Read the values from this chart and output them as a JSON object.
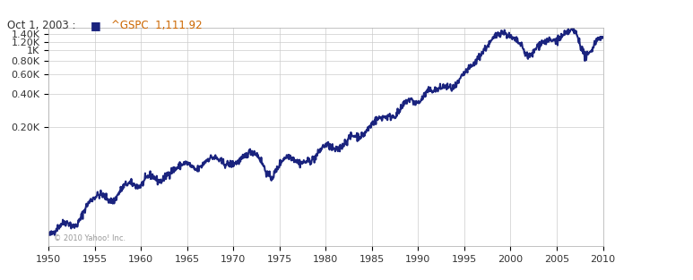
{
  "title_text": "Oct 1, 2003 :   ■^GSPC  1,111.92",
  "title_color": "#333333",
  "legend_marker_color": "#1a237e",
  "legend_text_color": "#cc6600",
  "copyright_text": "© 2010 Yahoo! Inc.",
  "line_color": "#1a237e",
  "line_width": 1.5,
  "background_color": "#ffffff",
  "grid_color": "#cccccc",
  "x_start": 1950,
  "x_end": 2010,
  "xticks": [
    1950,
    1955,
    1960,
    1965,
    1970,
    1975,
    1980,
    1985,
    1990,
    1995,
    2000,
    2005,
    2010
  ],
  "yticks": [
    200,
    400,
    600,
    800,
    1000,
    1200,
    1400
  ],
  "ytick_labels": [
    "0.20K",
    "0.40K",
    "0.60K",
    "0.80K",
    "1K",
    "1.20K",
    "1.40K"
  ],
  "ylim_log": [
    16,
    1600
  ],
  "sp500_data": {
    "years": [
      1950,
      1951,
      1952,
      1953,
      1954,
      1955,
      1956,
      1957,
      1958,
      1959,
      1960,
      1961,
      1962,
      1963,
      1964,
      1965,
      1966,
      1967,
      1968,
      1969,
      1970,
      1971,
      1972,
      1973,
      1974,
      1975,
      1976,
      1977,
      1978,
      1979,
      1980,
      1981,
      1982,
      1983,
      1984,
      1985,
      1986,
      1987,
      1988,
      1989,
      1990,
      1991,
      1992,
      1993,
      1994,
      1995,
      1996,
      1997,
      1998,
      1999,
      2000,
      2001,
      2002,
      2003,
      2004,
      2005,
      2006,
      2007,
      2008,
      2009,
      2010
    ],
    "values": [
      20.4,
      23.8,
      26.6,
      24.8,
      35.9,
      45.5,
      46.6,
      41.7,
      55.2,
      59.9,
      58.1,
      71.5,
      63.1,
      75.0,
      84.8,
      92.4,
      80.3,
      96.5,
      103.9,
      92.1,
      92.2,
      102.1,
      118.1,
      97.6,
      68.6,
      90.2,
      107.5,
      95.1,
      96.1,
      107.9,
      135.8,
      122.5,
      140.6,
      164.9,
      167.2,
      211.3,
      242.2,
      247.1,
      277.7,
      353.4,
      330.2,
      417.1,
      435.7,
      466.4,
      459.3,
      615.9,
      740.7,
      970.4,
      1229.2,
      1469.3,
      1320.3,
      1148.1,
      879.8,
      1111.9,
      1211.9,
      1248.3,
      1418.3,
      1468.4,
      903.2,
      1115.1,
      1257.6
    ]
  }
}
